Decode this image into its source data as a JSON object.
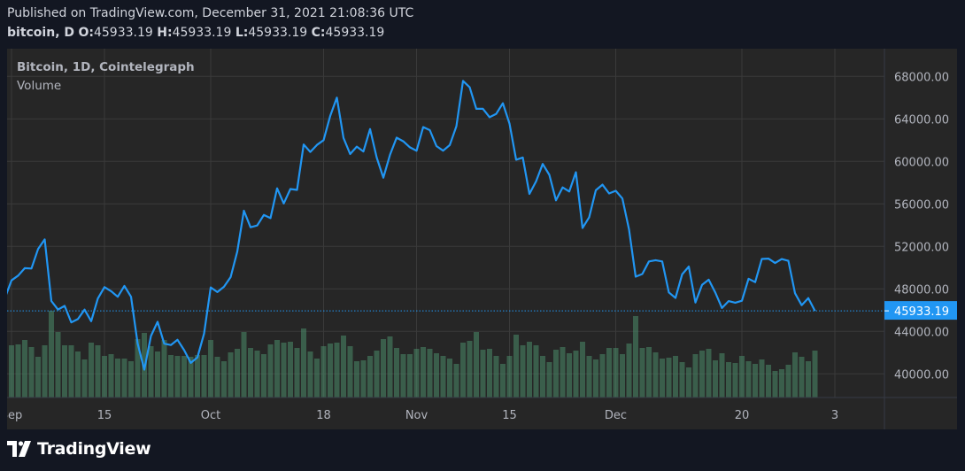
{
  "header": {
    "published": "Published on TradingView.com, December 31, 2021 21:08:36 UTC",
    "symbol": "bitcoin, D",
    "o_label": "O:",
    "o_value": "45933.19",
    "h_label": "H:",
    "h_value": "45933.19",
    "l_label": "L:",
    "l_value": "45933.19",
    "c_label": "C:",
    "c_value": "45933.19"
  },
  "legend": {
    "title": "Bitcoin, 1D, Cointelegraph",
    "volume": "Volume"
  },
  "logo": {
    "text": "TradingView"
  },
  "colors": {
    "background": "#131722",
    "panel": "#262626",
    "line": "#2196f3",
    "volume": "#3a5e4b",
    "grid": "#3a3a3a",
    "axis_text": "#b2b5be"
  },
  "chart_data": {
    "type": "line",
    "grid": true,
    "ylim": [
      37800,
      70500
    ],
    "y_ticks": [
      {
        "value": 40000,
        "label": "40000.00"
      },
      {
        "value": 44000,
        "label": "44000.00"
      },
      {
        "value": 48000,
        "label": "48000.00"
      },
      {
        "value": 52000,
        "label": "52000.00"
      },
      {
        "value": 56000,
        "label": "56000.00"
      },
      {
        "value": 60000,
        "label": "60000.00"
      },
      {
        "value": 64000,
        "label": "64000.00"
      },
      {
        "value": 68000,
        "label": "68000.00"
      }
    ],
    "x_ticks": [
      {
        "date": "2021-09-01",
        "label": "Sep"
      },
      {
        "date": "2021-09-15",
        "label": "15"
      },
      {
        "date": "2021-10-01",
        "label": "Oct"
      },
      {
        "date": "2021-10-18",
        "label": "18"
      },
      {
        "date": "2021-11-01",
        "label": "Nov"
      },
      {
        "date": "2021-11-15",
        "label": "15"
      },
      {
        "date": "2021-12-01",
        "label": "Dec"
      },
      {
        "date": "2021-12-20",
        "label": "20"
      },
      {
        "date": "2022-01-03",
        "label": "3"
      }
    ],
    "last_price": {
      "value": 45933.19,
      "label": "45933.19"
    },
    "x": [
      "2021-08-31",
      "2021-09-01",
      "2021-09-02",
      "2021-09-03",
      "2021-09-04",
      "2021-09-05",
      "2021-09-06",
      "2021-09-07",
      "2021-09-08",
      "2021-09-09",
      "2021-09-10",
      "2021-09-11",
      "2021-09-12",
      "2021-09-13",
      "2021-09-14",
      "2021-09-15",
      "2021-09-16",
      "2021-09-17",
      "2021-09-18",
      "2021-09-19",
      "2021-09-20",
      "2021-09-21",
      "2021-09-22",
      "2021-09-23",
      "2021-09-24",
      "2021-09-25",
      "2021-09-26",
      "2021-09-27",
      "2021-09-28",
      "2021-09-29",
      "2021-09-30",
      "2021-10-01",
      "2021-10-02",
      "2021-10-03",
      "2021-10-04",
      "2021-10-05",
      "2021-10-06",
      "2021-10-07",
      "2021-10-08",
      "2021-10-09",
      "2021-10-10",
      "2021-10-11",
      "2021-10-12",
      "2021-10-13",
      "2021-10-14",
      "2021-10-15",
      "2021-10-16",
      "2021-10-17",
      "2021-10-18",
      "2021-10-19",
      "2021-10-20",
      "2021-10-21",
      "2021-10-22",
      "2021-10-23",
      "2021-10-24",
      "2021-10-25",
      "2021-10-26",
      "2021-10-27",
      "2021-10-28",
      "2021-10-29",
      "2021-10-30",
      "2021-10-31",
      "2021-11-01",
      "2021-11-02",
      "2021-11-03",
      "2021-11-04",
      "2021-11-05",
      "2021-11-06",
      "2021-11-07",
      "2021-11-08",
      "2021-11-09",
      "2021-11-10",
      "2021-11-11",
      "2021-11-12",
      "2021-11-13",
      "2021-11-14",
      "2021-11-15",
      "2021-11-16",
      "2021-11-17",
      "2021-11-18",
      "2021-11-19",
      "2021-11-20",
      "2021-11-21",
      "2021-11-22",
      "2021-11-23",
      "2021-11-24",
      "2021-11-25",
      "2021-11-26",
      "2021-11-27",
      "2021-11-28",
      "2021-11-29",
      "2021-11-30",
      "2021-12-01",
      "2021-12-02",
      "2021-12-03",
      "2021-12-04",
      "2021-12-05",
      "2021-12-06",
      "2021-12-07",
      "2021-12-08",
      "2021-12-09",
      "2021-12-10",
      "2021-12-11",
      "2021-12-12",
      "2021-12-13",
      "2021-12-14",
      "2021-12-15",
      "2021-12-16",
      "2021-12-17",
      "2021-12-18",
      "2021-12-19",
      "2021-12-20",
      "2021-12-21",
      "2021-12-22",
      "2021-12-23",
      "2021-12-24",
      "2021-12-25",
      "2021-12-26",
      "2021-12-27",
      "2021-12-28",
      "2021-12-29",
      "2021-12-30",
      "2021-12-31"
    ],
    "series": [
      {
        "type": "line",
        "values": [
          47130,
          48800,
          49250,
          49950,
          49920,
          51750,
          52660,
          46860,
          46050,
          46400,
          44850,
          45160,
          46050,
          44960,
          47090,
          48170,
          47780,
          47260,
          48280,
          47260,
          42840,
          40400,
          43570,
          44900,
          42840,
          42720,
          43210,
          42230,
          41030,
          41550,
          43790,
          48140,
          47700,
          48200,
          49110,
          51510,
          55360,
          53800,
          53970,
          54960,
          54660,
          57470,
          56040,
          57400,
          57320,
          61590,
          60890,
          61550,
          62000,
          64280,
          66000,
          62210,
          60690,
          61390,
          60930,
          63040,
          60360,
          58470,
          60620,
          62230,
          61890,
          61320,
          61000,
          63230,
          62940,
          61440,
          61010,
          61530,
          63310,
          67570,
          66970,
          64950,
          64950,
          64160,
          64470,
          65470,
          63560,
          60160,
          60370,
          56940,
          58120,
          59760,
          58730,
          56330,
          57550,
          57170,
          58980,
          53730,
          54740,
          57280,
          57810,
          56980,
          57230,
          56510,
          53600,
          49150,
          49400,
          50580,
          50700,
          50580,
          47670,
          47150,
          49370,
          50100,
          46720,
          48380,
          48870,
          47650,
          46200,
          46850,
          46700,
          46880,
          48950,
          48630,
          50820,
          50850,
          50430,
          50810,
          50640,
          47590,
          46470,
          47130,
          45933.19
        ]
      },
      {
        "name": "Volume",
        "type": "bar",
        "unit": "relative",
        "values": [
          null,
          59,
          60,
          65,
          57,
          46,
          59,
          98,
          74,
          59,
          59,
          52,
          43,
          62,
          59,
          47,
          49,
          44,
          44,
          41,
          66,
          73,
          58,
          52,
          65,
          48,
          47,
          47,
          46,
          48,
          48,
          65,
          46,
          41,
          51,
          55,
          74,
          56,
          53,
          49,
          60,
          65,
          62,
          63,
          56,
          78,
          52,
          44,
          58,
          61,
          62,
          70,
          58,
          41,
          42,
          47,
          53,
          66,
          69,
          56,
          49,
          49,
          55,
          57,
          55,
          50,
          47,
          44,
          38,
          62,
          64,
          74,
          54,
          55,
          47,
          38,
          47,
          71,
          59,
          63,
          59,
          47,
          40,
          54,
          57,
          50,
          53,
          63,
          47,
          43,
          49,
          56,
          56,
          49,
          61,
          92,
          56,
          57,
          51,
          44,
          45,
          47,
          40,
          34,
          49,
          53,
          55,
          42,
          50,
          40,
          39,
          47,
          41,
          38,
          43,
          37,
          30,
          32,
          37,
          51,
          46,
          41,
          53
        ]
      }
    ]
  }
}
